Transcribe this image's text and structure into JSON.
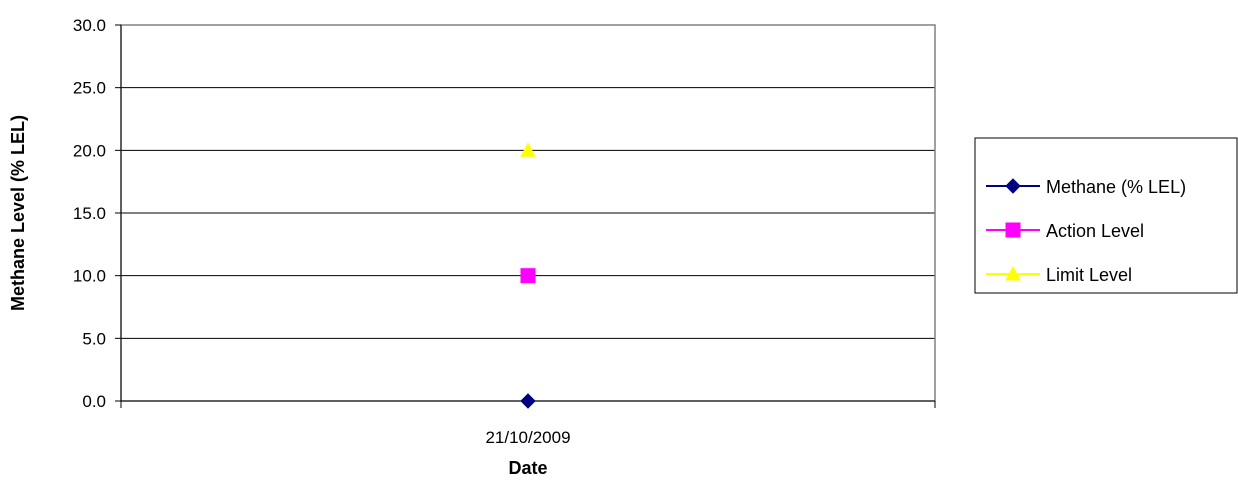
{
  "chart_data": {
    "type": "line",
    "title": "",
    "xlabel": "Date",
    "ylabel": "Methane Level (% LEL)",
    "categories": [
      "21/10/2009"
    ],
    "ylim": [
      0,
      30
    ],
    "yticks": [
      "0.0",
      "5.0",
      "10.0",
      "15.0",
      "20.0",
      "25.0",
      "30.0"
    ],
    "grid": true,
    "legend_position": "right",
    "series": [
      {
        "name": "Methane (% LEL)",
        "values": [
          0
        ],
        "color": "#000080",
        "marker": "diamond"
      },
      {
        "name": "Action Level",
        "values": [
          10
        ],
        "color": "#ff00ff",
        "marker": "square"
      },
      {
        "name": "Limit Level",
        "values": [
          20
        ],
        "color": "#ffff00",
        "marker": "triangle"
      }
    ]
  }
}
